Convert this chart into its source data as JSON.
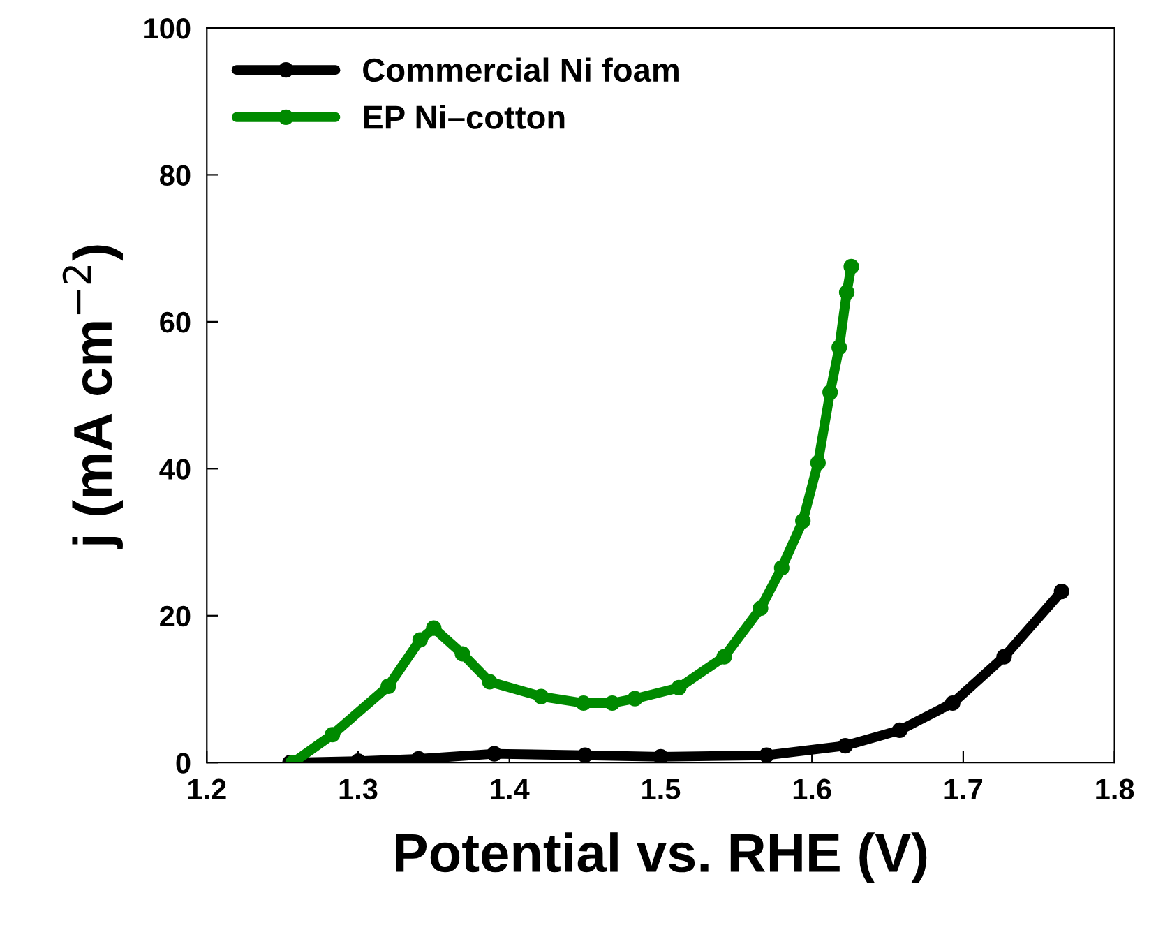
{
  "chart_data": {
    "type": "line",
    "xlabel": "Potential vs. RHE (V)",
    "ylabel": "j (mA cm$^{−2}$)",
    "xlim": [
      1.2,
      1.8
    ],
    "xticks": [
      1.2,
      1.3,
      1.4,
      1.5,
      1.6,
      1.7,
      1.8
    ],
    "ylim": [
      0,
      100
    ],
    "yticks": [
      0,
      20,
      40,
      60,
      80,
      100
    ],
    "grid": false,
    "legend": "top left",
    "marker": "circle",
    "line_style": "solid",
    "series": [
      {
        "name": "Commercial Ni foam",
        "color": "#000000",
        "x": [
          1.255,
          1.3,
          1.34,
          1.39,
          1.45,
          1.5,
          1.57,
          1.622,
          1.658,
          1.693,
          1.727,
          1.765
        ],
        "values": [
          0,
          0.2,
          0.5,
          1.2,
          1.0,
          0.8,
          1.0,
          2.3,
          4.4,
          8.1,
          14.4,
          23.3
        ]
      },
      {
        "name": "EP Ni–cotton",
        "color": "#008a00",
        "x": [
          1.257,
          1.283,
          1.32,
          1.341,
          1.35,
          1.369,
          1.387,
          1.421,
          1.449,
          1.468,
          1.483,
          1.512,
          1.542,
          1.566,
          1.58,
          1.594,
          1.604,
          1.612,
          1.618,
          1.623,
          1.626
        ],
        "values": [
          0,
          3.8,
          10.4,
          16.7,
          18.3,
          14.8,
          11.0,
          9.0,
          8.1,
          8.1,
          8.7,
          10.2,
          14.4,
          21,
          26.5,
          32.9,
          40.8,
          50.4,
          56.5,
          64,
          67.5
        ]
      }
    ]
  }
}
